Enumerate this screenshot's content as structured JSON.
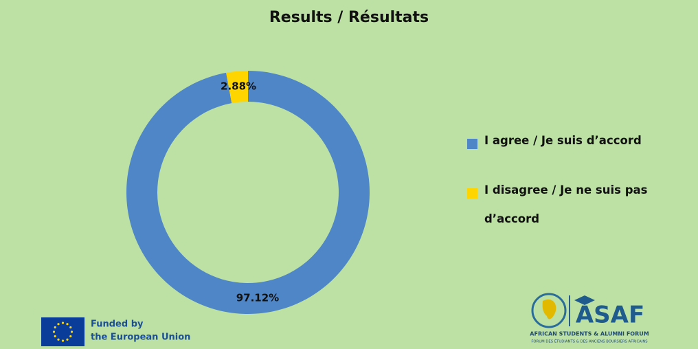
{
  "chart_data": {
    "type": "pie",
    "donut": true,
    "title": "Results / Résultats",
    "categories": [
      "I agree / Je suis d’accord",
      "I disagree / Je ne suis pas d’accord"
    ],
    "values": [
      97.12,
      2.88
    ],
    "value_labels": [
      "97.12%",
      "2.88%"
    ],
    "colors": [
      "#4e86c8",
      "#ffd500"
    ],
    "legend": "right"
  },
  "footer": {
    "eu": [
      "Funded by",
      "the European Union"
    ],
    "asaf": {
      "name": "ASAF",
      "line1": "AFRICAN STUDENTS & ALUMNI FORUM",
      "line2": "FORUM DES ÉTUDIANTS & DES ANCIENS BOURSIERS AFRICAINS"
    }
  }
}
